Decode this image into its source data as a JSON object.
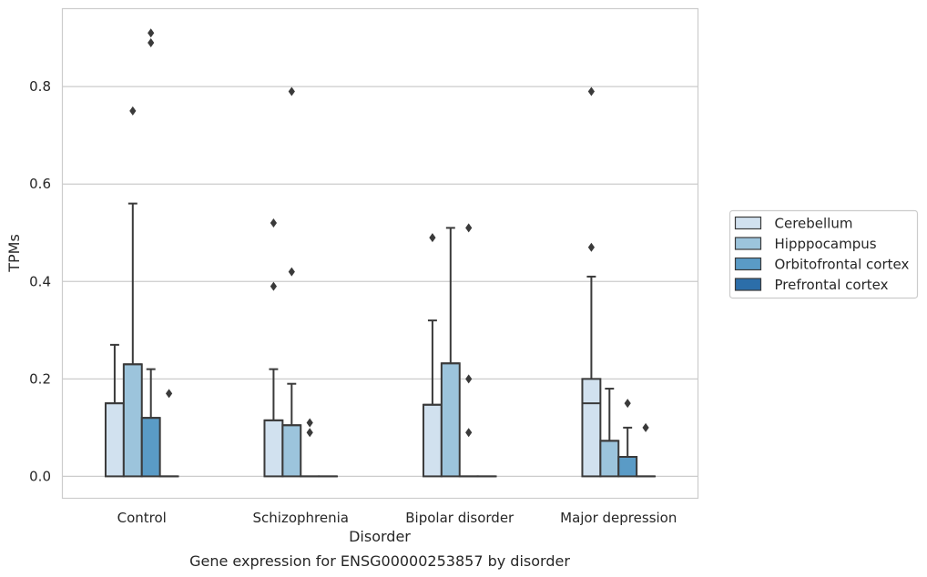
{
  "chart_data": {
    "type": "box",
    "title": "",
    "caption": "Gene expression for ENSG00000253857 by disorder",
    "xlabel": "Disorder",
    "ylabel": "TPMs",
    "ylim": [
      -0.045,
      0.96
    ],
    "yticks": [
      0.0,
      0.2,
      0.4,
      0.6,
      0.8
    ],
    "ytick_labels": [
      "0.0",
      "0.2",
      "0.4",
      "0.6",
      "0.8"
    ],
    "grid": "horizontal",
    "legend_position": "right",
    "categories": [
      "Control",
      "Schizophrenia",
      "Bipolar disorder",
      "Major depression"
    ],
    "series": [
      {
        "name": "Cerebellum",
        "color": "#d1e1ef",
        "boxes": [
          {
            "q1": 0.0,
            "median": 0.15,
            "q3": 0.15,
            "whisker_low": 0.0,
            "whisker_high": 0.27,
            "outliers": []
          },
          {
            "q1": 0.0,
            "median": 0.115,
            "q3": 0.115,
            "whisker_low": 0.0,
            "whisker_high": 0.22,
            "outliers": [
              0.39,
              0.52
            ]
          },
          {
            "q1": 0.0,
            "median": 0.147,
            "q3": 0.147,
            "whisker_low": 0.0,
            "whisker_high": 0.32,
            "outliers": [
              0.49
            ]
          },
          {
            "q1": 0.0,
            "median": 0.15,
            "q3": 0.2,
            "whisker_low": 0.0,
            "whisker_high": 0.41,
            "outliers": [
              0.47,
              0.79
            ]
          }
        ]
      },
      {
        "name": "Hipppocampus",
        "color": "#9cc4dc",
        "boxes": [
          {
            "q1": 0.0,
            "median": 0.23,
            "q3": 0.23,
            "whisker_low": 0.0,
            "whisker_high": 0.56,
            "outliers": [
              0.75
            ]
          },
          {
            "q1": 0.0,
            "median": 0.105,
            "q3": 0.105,
            "whisker_low": 0.0,
            "whisker_high": 0.19,
            "outliers": [
              0.42,
              0.79
            ]
          },
          {
            "q1": 0.0,
            "median": 0.232,
            "q3": 0.232,
            "whisker_low": 0.0,
            "whisker_high": 0.51,
            "outliers": []
          },
          {
            "q1": 0.0,
            "median": 0.073,
            "q3": 0.073,
            "whisker_low": 0.0,
            "whisker_high": 0.18,
            "outliers": []
          }
        ]
      },
      {
        "name": "Orbitofrontal cortex",
        "color": "#5a9bc6",
        "boxes": [
          {
            "q1": 0.0,
            "median": 0.12,
            "q3": 0.12,
            "whisker_low": 0.0,
            "whisker_high": 0.22,
            "outliers": [
              0.89,
              0.91
            ]
          },
          {
            "q1": 0.0,
            "median": 0.0,
            "q3": 0.0,
            "whisker_low": 0.0,
            "whisker_high": 0.0,
            "outliers": [
              0.09,
              0.11
            ]
          },
          {
            "q1": 0.0,
            "median": 0.0,
            "q3": 0.0,
            "whisker_low": 0.0,
            "whisker_high": 0.0,
            "outliers": [
              0.09,
              0.2,
              0.51
            ]
          },
          {
            "q1": 0.0,
            "median": 0.04,
            "q3": 0.04,
            "whisker_low": 0.0,
            "whisker_high": 0.1,
            "outliers": [
              0.15
            ]
          }
        ]
      },
      {
        "name": "Prefrontal cortex",
        "color": "#2c6ea9",
        "boxes": [
          {
            "q1": 0.0,
            "median": 0.0,
            "q3": 0.0,
            "whisker_low": 0.0,
            "whisker_high": 0.0,
            "outliers": [
              0.17
            ]
          },
          {
            "q1": 0.0,
            "median": 0.0,
            "q3": 0.0,
            "whisker_low": 0.0,
            "whisker_high": 0.0,
            "outliers": []
          },
          {
            "q1": 0.0,
            "median": 0.0,
            "q3": 0.0,
            "whisker_low": 0.0,
            "whisker_high": 0.0,
            "outliers": []
          },
          {
            "q1": 0.0,
            "median": 0.0,
            "q3": 0.0,
            "whisker_low": 0.0,
            "whisker_high": 0.0,
            "outliers": [
              0.1
            ]
          }
        ]
      }
    ]
  }
}
